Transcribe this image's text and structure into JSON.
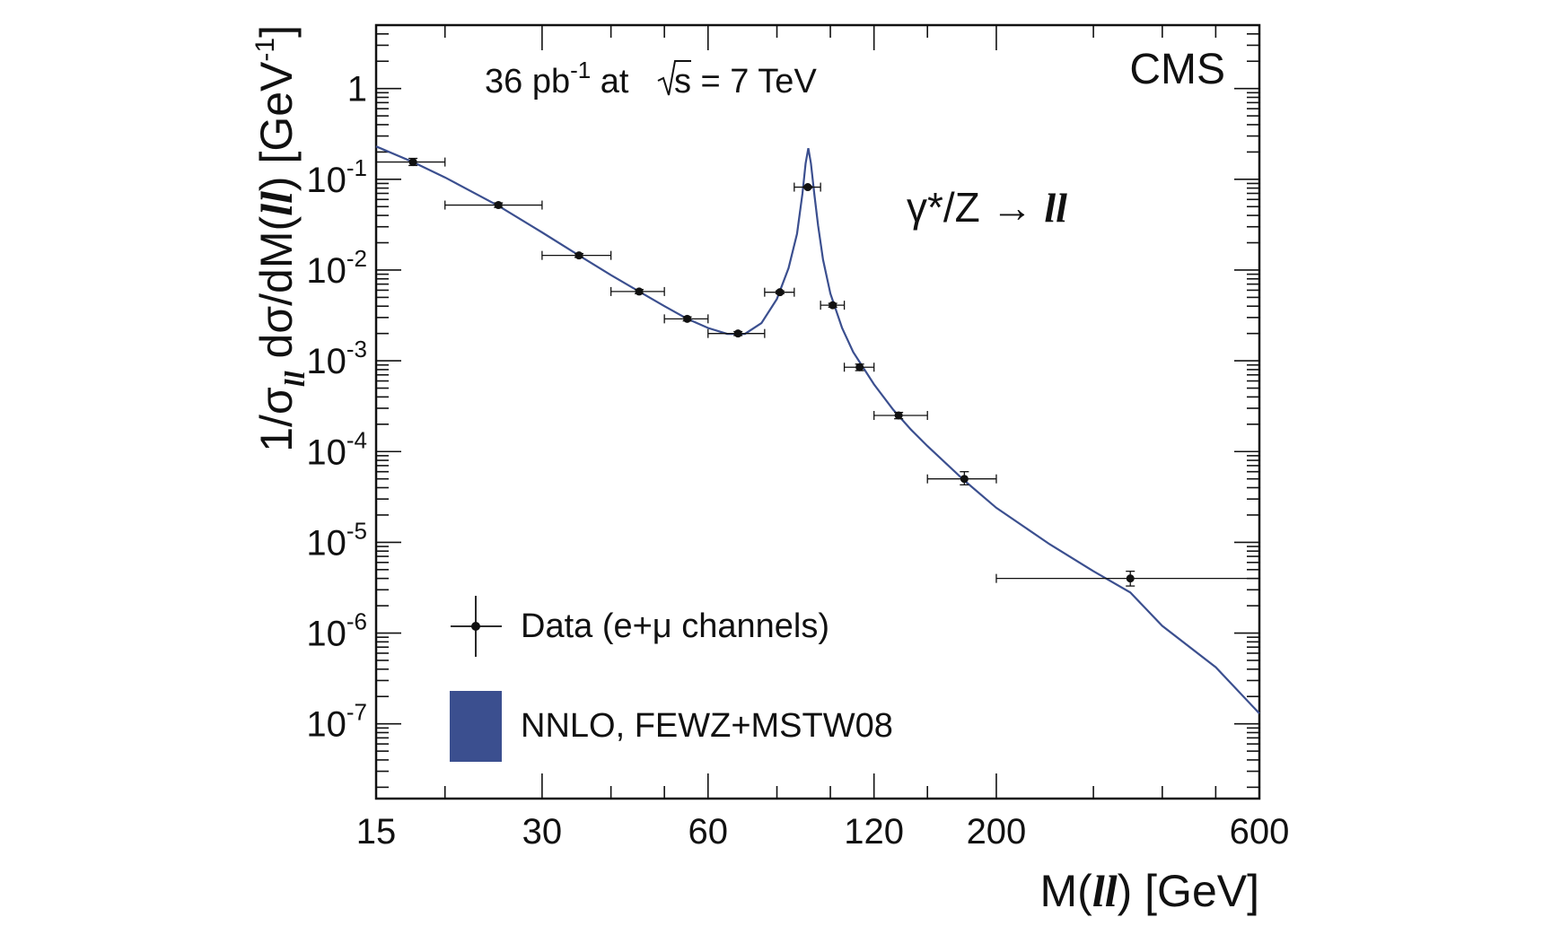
{
  "chart_data": {
    "type": "line",
    "title": "",
    "experiment_label": "CMS",
    "lumi": {
      "prefix": "36 pb",
      "exp": "-1",
      "mid": " at ",
      "sqrt_arg": "s",
      "suffix": " = 7 TeV"
    },
    "process": {
      "pre": "γ*/Z → ",
      "ll": "ll"
    },
    "xlabel": {
      "pre": "M(",
      "ll": "ll",
      "post": ")  [GeV]"
    },
    "ylabel": {
      "pre": "1/σ",
      "sub": "ll",
      "mid": " dσ/dM(",
      "ll": "ll",
      "post": ") [GeV",
      "exp": "-1",
      "close": "]"
    },
    "xscale": "log",
    "yscale": "log",
    "xlim": [
      15,
      600
    ],
    "ylim": [
      1.5e-08,
      5
    ],
    "x_ticks": [
      {
        "value": 15,
        "label": "15"
      },
      {
        "value": 30,
        "label": "30"
      },
      {
        "value": 60,
        "label": "60"
      },
      {
        "value": 120,
        "label": "120"
      },
      {
        "value": 200,
        "label": "200"
      },
      {
        "value": 600,
        "label": "600"
      }
    ],
    "x_minor_ticks": [
      20,
      40,
      50,
      80,
      100,
      150,
      300,
      400,
      500
    ],
    "y_ticks": [
      {
        "value": 1,
        "base": "1",
        "exp": ""
      },
      {
        "value": 0.1,
        "base": "10",
        "exp": "-1"
      },
      {
        "value": 0.01,
        "base": "10",
        "exp": "-2"
      },
      {
        "value": 0.001,
        "base": "10",
        "exp": "-3"
      },
      {
        "value": 0.0001,
        "base": "10",
        "exp": "-4"
      },
      {
        "value": 1e-05,
        "base": "10",
        "exp": "-5"
      },
      {
        "value": 1e-06,
        "base": "10",
        "exp": "-6"
      },
      {
        "value": 1e-07,
        "base": "10",
        "exp": "-7"
      }
    ],
    "series": [
      {
        "name": "Data (e+μ channels)",
        "kind": "points",
        "color": "#111111",
        "points": [
          {
            "x": 17.5,
            "y": 0.155,
            "xlo": 15,
            "xhi": 20,
            "ylo": 0.142,
            "yhi": 0.17
          },
          {
            "x": 25,
            "y": 0.052,
            "xlo": 20,
            "xhi": 30,
            "ylo": 0.049,
            "yhi": 0.055
          },
          {
            "x": 35,
            "y": 0.0145,
            "xlo": 30,
            "xhi": 40,
            "ylo": 0.0138,
            "yhi": 0.0152
          },
          {
            "x": 45,
            "y": 0.0058,
            "xlo": 40,
            "xhi": 50,
            "ylo": 0.0055,
            "yhi": 0.0061
          },
          {
            "x": 55,
            "y": 0.0029,
            "xlo": 50,
            "xhi": 60,
            "ylo": 0.00275,
            "yhi": 0.00305
          },
          {
            "x": 68,
            "y": 0.002,
            "xlo": 60,
            "xhi": 76,
            "ylo": 0.0019,
            "yhi": 0.0021
          },
          {
            "x": 81,
            "y": 0.0057,
            "xlo": 76,
            "xhi": 86,
            "ylo": 0.0055,
            "yhi": 0.0059
          },
          {
            "x": 91,
            "y": 0.082,
            "xlo": 86,
            "xhi": 96,
            "ylo": 0.08,
            "yhi": 0.084
          },
          {
            "x": 101,
            "y": 0.0041,
            "xlo": 96,
            "xhi": 106,
            "ylo": 0.0039,
            "yhi": 0.0043
          },
          {
            "x": 113,
            "y": 0.00085,
            "xlo": 106,
            "xhi": 120,
            "ylo": 0.00078,
            "yhi": 0.00092
          },
          {
            "x": 133,
            "y": 0.00025,
            "xlo": 120,
            "xhi": 150,
            "ylo": 0.00023,
            "yhi": 0.00027
          },
          {
            "x": 175,
            "y": 5e-05,
            "xlo": 150,
            "xhi": 200,
            "ylo": 4.3e-05,
            "yhi": 6e-05
          },
          {
            "x": 350,
            "y": 4e-06,
            "xlo": 200,
            "xhi": 600,
            "ylo": 3.3e-06,
            "yhi": 4.8e-06
          }
        ]
      },
      {
        "name": "NNLO, FEWZ+MSTW08",
        "kind": "curve",
        "color": "#3b4f8f",
        "points": [
          {
            "x": 15,
            "y": 0.23
          },
          {
            "x": 17.5,
            "y": 0.155
          },
          {
            "x": 20,
            "y": 0.105
          },
          {
            "x": 25,
            "y": 0.051
          },
          {
            "x": 30,
            "y": 0.026
          },
          {
            "x": 35,
            "y": 0.0145
          },
          {
            "x": 40,
            "y": 0.0088
          },
          {
            "x": 45,
            "y": 0.0058
          },
          {
            "x": 50,
            "y": 0.004
          },
          {
            "x": 55,
            "y": 0.0029
          },
          {
            "x": 60,
            "y": 0.0023
          },
          {
            "x": 65,
            "y": 0.00198
          },
          {
            "x": 70,
            "y": 0.00198
          },
          {
            "x": 75,
            "y": 0.0026
          },
          {
            "x": 80,
            "y": 0.0048
          },
          {
            "x": 84,
            "y": 0.0105
          },
          {
            "x": 87,
            "y": 0.025
          },
          {
            "x": 89,
            "y": 0.07
          },
          {
            "x": 90.2,
            "y": 0.15
          },
          {
            "x": 91.2,
            "y": 0.22
          },
          {
            "x": 92.2,
            "y": 0.15
          },
          {
            "x": 93.5,
            "y": 0.07
          },
          {
            "x": 95,
            "y": 0.031
          },
          {
            "x": 97,
            "y": 0.013
          },
          {
            "x": 100,
            "y": 0.0055
          },
          {
            "x": 105,
            "y": 0.0023
          },
          {
            "x": 110,
            "y": 0.00125
          },
          {
            "x": 120,
            "y": 0.00055
          },
          {
            "x": 130,
            "y": 0.00029
          },
          {
            "x": 140,
            "y": 0.000175
          },
          {
            "x": 150,
            "y": 0.000115
          },
          {
            "x": 175,
            "y": 4.8e-05
          },
          {
            "x": 200,
            "y": 2.4e-05
          },
          {
            "x": 250,
            "y": 9.5e-06
          },
          {
            "x": 300,
            "y": 4.8e-06
          },
          {
            "x": 350,
            "y": 2.8e-06
          },
          {
            "x": 400,
            "y": 1.2e-06
          },
          {
            "x": 500,
            "y": 4.2e-07
          },
          {
            "x": 600,
            "y": 1.3e-07
          }
        ]
      }
    ],
    "legend": {
      "location": "bottom-left",
      "entries": [
        {
          "label": "Data (e+μ channels)",
          "kind": "marker"
        },
        {
          "label": "NNLO, FEWZ+MSTW08",
          "kind": "box"
        }
      ]
    }
  }
}
